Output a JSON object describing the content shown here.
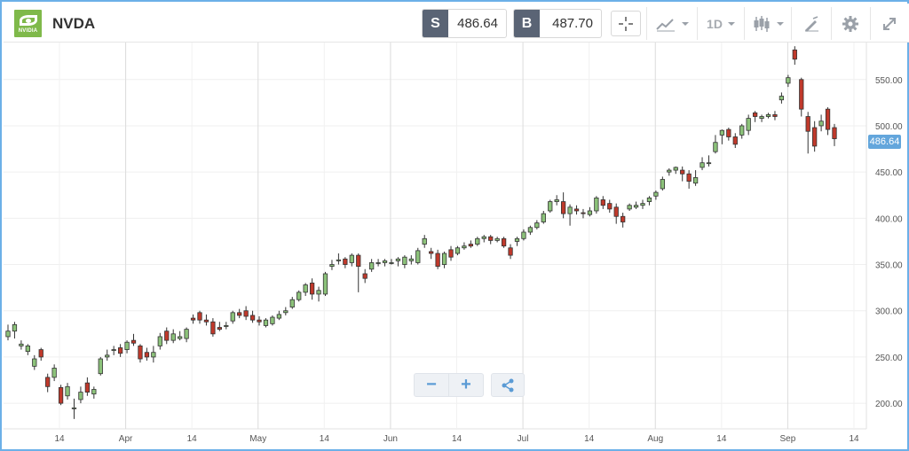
{
  "header": {
    "logo_text": "NVIDIA",
    "symbol": "NVDA",
    "sell_tag": "S",
    "sell_price": "486.64",
    "buy_tag": "B",
    "buy_price": "487.70",
    "interval": "1D"
  },
  "controls": {
    "zoom_out": "−",
    "zoom_in": "+"
  },
  "colors": {
    "up": "#8cc27a",
    "down": "#c0392b",
    "accent": "#5b9bd5",
    "last_price_bg": "#63a6dc"
  },
  "icons": [
    "crosshair-icon",
    "indicators-icon",
    "candle-type-icon",
    "draw-icon",
    "gear-icon",
    "expand-icon",
    "share-icon"
  ],
  "chart_data": {
    "type": "candlestick",
    "last_price_label": "486.64",
    "y_ticks": [
      "550.00",
      "500.00",
      "450.00",
      "400.00",
      "350.00",
      "300.00",
      "250.00",
      "200.00"
    ],
    "x_ticks": [
      "14",
      "Apr",
      "14",
      "May",
      "14",
      "Jun",
      "14",
      "Jul",
      "14",
      "Aug",
      "14",
      "Sep",
      "14"
    ],
    "ylim": [
      180,
      590
    ],
    "candles": [
      [
        272,
        278,
        285,
        268
      ],
      [
        278,
        285,
        288,
        270
      ],
      [
        262,
        264,
        268,
        258
      ],
      [
        256,
        262,
        264,
        252
      ],
      [
        240,
        248,
        252,
        236
      ],
      [
        258,
        250,
        260,
        246
      ],
      [
        228,
        218,
        232,
        212
      ],
      [
        228,
        238,
        242,
        224
      ],
      [
        217,
        200,
        220,
        198
      ],
      [
        208,
        218,
        222,
        204
      ],
      [
        195,
        195,
        205,
        183
      ],
      [
        204,
        212,
        218,
        200
      ],
      [
        222,
        212,
        228,
        208
      ],
      [
        210,
        215,
        218,
        205
      ],
      [
        232,
        248,
        250,
        230
      ],
      [
        250,
        252,
        258,
        246
      ],
      [
        258,
        258,
        262,
        252
      ],
      [
        260,
        254,
        264,
        250
      ],
      [
        258,
        266,
        268,
        254
      ],
      [
        268,
        265,
        275,
        262
      ],
      [
        262,
        248,
        264,
        244
      ],
      [
        255,
        250,
        260,
        246
      ],
      [
        250,
        255,
        262,
        244
      ],
      [
        262,
        272,
        276,
        258
      ],
      [
        278,
        268,
        282,
        264
      ],
      [
        268,
        275,
        280,
        265
      ],
      [
        270,
        272,
        278,
        268
      ],
      [
        270,
        280,
        282,
        266
      ],
      [
        292,
        290,
        296,
        286
      ],
      [
        298,
        290,
        300,
        286
      ],
      [
        290,
        288,
        296,
        284
      ],
      [
        288,
        275,
        292,
        272
      ],
      [
        282,
        280,
        288,
        278
      ],
      [
        283,
        284,
        288,
        280
      ],
      [
        289,
        298,
        300,
        286
      ],
      [
        298,
        295,
        302,
        292
      ],
      [
        300,
        294,
        305,
        290
      ],
      [
        295,
        290,
        300,
        287
      ],
      [
        290,
        288,
        294,
        284
      ],
      [
        284,
        290,
        292,
        282
      ],
      [
        286,
        293,
        295,
        284
      ],
      [
        292,
        296,
        300,
        290
      ],
      [
        298,
        300,
        304,
        295
      ],
      [
        304,
        312,
        315,
        302
      ],
      [
        312,
        320,
        322,
        310
      ],
      [
        320,
        328,
        330,
        316
      ],
      [
        330,
        318,
        335,
        312
      ],
      [
        318,
        322,
        326,
        310
      ],
      [
        318,
        340,
        342,
        316
      ],
      [
        348,
        350,
        355,
        344
      ],
      [
        354,
        355,
        362,
        350
      ],
      [
        356,
        350,
        358,
        346
      ],
      [
        352,
        360,
        362,
        348
      ],
      [
        360,
        348,
        362,
        320
      ],
      [
        340,
        335,
        345,
        330
      ],
      [
        345,
        352,
        356,
        342
      ],
      [
        352,
        352,
        356,
        348
      ],
      [
        352,
        354,
        356,
        348
      ],
      [
        352,
        352,
        356,
        350
      ],
      [
        354,
        356,
        358,
        348
      ],
      [
        350,
        358,
        360,
        346
      ],
      [
        354,
        356,
        360,
        350
      ],
      [
        352,
        365,
        368,
        350
      ],
      [
        372,
        378,
        382,
        368
      ],
      [
        364,
        362,
        368,
        356
      ],
      [
        362,
        348,
        366,
        345
      ],
      [
        350,
        362,
        364,
        346
      ],
      [
        366,
        358,
        370,
        354
      ],
      [
        362,
        368,
        370,
        360
      ],
      [
        368,
        370,
        374,
        366
      ],
      [
        372,
        370,
        376,
        368
      ],
      [
        372,
        378,
        380,
        370
      ],
      [
        378,
        380,
        382,
        374
      ],
      [
        380,
        376,
        382,
        372
      ],
      [
        376,
        378,
        380,
        374
      ],
      [
        378,
        370,
        380,
        368
      ],
      [
        368,
        360,
        372,
        356
      ],
      [
        375,
        378,
        380,
        370
      ],
      [
        378,
        385,
        388,
        376
      ],
      [
        385,
        390,
        392,
        382
      ],
      [
        390,
        395,
        398,
        388
      ],
      [
        396,
        405,
        408,
        394
      ],
      [
        408,
        418,
        420,
        406
      ],
      [
        418,
        420,
        425,
        414
      ],
      [
        418,
        405,
        428,
        400
      ],
      [
        405,
        412,
        415,
        392
      ],
      [
        410,
        408,
        414,
        404
      ],
      [
        406,
        405,
        410,
        400
      ],
      [
        404,
        408,
        412,
        402
      ],
      [
        408,
        422,
        424,
        405
      ],
      [
        420,
        414,
        424,
        410
      ],
      [
        416,
        410,
        420,
        406
      ],
      [
        412,
        402,
        416,
        394
      ],
      [
        402,
        396,
        406,
        390
      ],
      [
        410,
        414,
        416,
        408
      ],
      [
        412,
        414,
        418,
        410
      ],
      [
        414,
        416,
        420,
        410
      ],
      [
        418,
        422,
        424,
        414
      ],
      [
        424,
        428,
        430,
        420
      ],
      [
        432,
        442,
        445,
        430
      ],
      [
        450,
        452,
        454,
        446
      ],
      [
        452,
        455,
        456,
        448
      ],
      [
        452,
        448,
        456,
        440
      ],
      [
        448,
        440,
        452,
        432
      ],
      [
        438,
        444,
        452,
        435
      ],
      [
        455,
        460,
        466,
        452
      ],
      [
        460,
        460,
        468,
        456
      ],
      [
        472,
        482,
        490,
        470
      ],
      [
        490,
        495,
        496,
        480
      ],
      [
        496,
        488,
        498,
        484
      ],
      [
        488,
        480,
        492,
        476
      ],
      [
        490,
        500,
        502,
        486
      ],
      [
        495,
        508,
        512,
        490
      ],
      [
        514,
        510,
        516,
        504
      ],
      [
        508,
        510,
        512,
        504
      ],
      [
        510,
        512,
        514,
        508
      ],
      [
        512,
        510,
        516,
        506
      ],
      [
        528,
        532,
        536,
        524
      ],
      [
        546,
        552,
        555,
        542
      ],
      [
        582,
        572,
        586,
        566
      ],
      [
        550,
        518,
        552,
        510
      ],
      [
        510,
        494,
        515,
        470
      ],
      [
        498,
        478,
        505,
        472
      ],
      [
        500,
        505,
        512,
        494
      ],
      [
        518,
        496,
        520,
        490
      ],
      [
        498,
        486,
        502,
        478
      ]
    ]
  }
}
